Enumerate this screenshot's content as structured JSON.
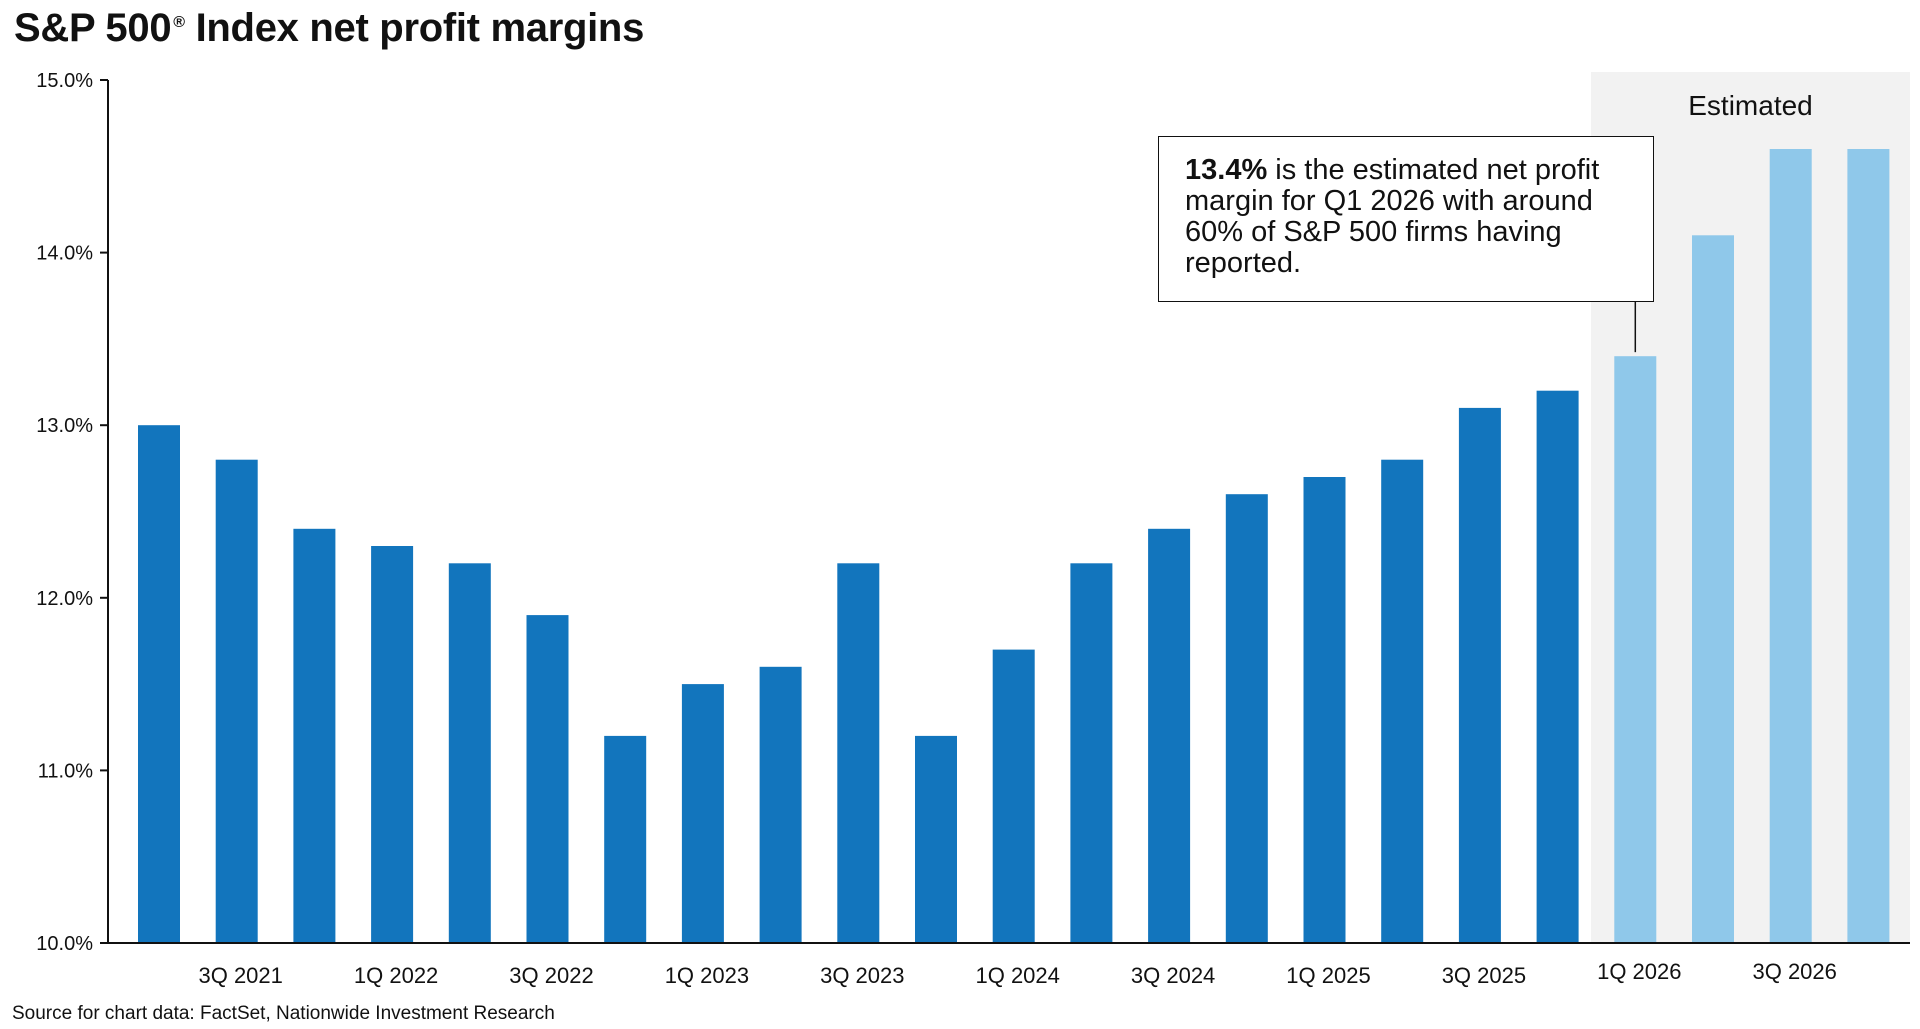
{
  "title": "S&P 500",
  "title_mark": "®",
  "title_rest": "Index net profit margins",
  "source": "Source for chart data: FactSet, Nationwide Investment Research",
  "callout": {
    "highlight": "13.4%",
    "text": "is the estimated net profit margin for Q1 2026 with around 60% of S&P 500 firms having reported."
  },
  "colors": {
    "actual": "#1275bd",
    "estimated": "#8fc8ea",
    "estimated_band": "#f2f2f2",
    "axis": "#111111"
  },
  "chart_data": {
    "type": "bar",
    "categories": [
      "2Q 2021",
      "3Q 2021",
      "4Q 2021",
      "1Q 2022",
      "2Q 2022",
      "3Q 2022",
      "4Q 2022",
      "1Q 2023",
      "2Q 2023",
      "3Q 2023",
      "4Q 2023",
      "1Q 2024",
      "2Q 2024",
      "3Q 2024",
      "4Q 2024",
      "1Q 2025",
      "2Q 2025",
      "3Q 2025",
      "4Q 2025",
      "1Q 2026",
      "2Q 2026",
      "3Q 2026",
      "4Q 2026"
    ],
    "tick_labels": [
      "",
      "3Q 2021",
      "",
      "1Q 2022",
      "",
      "3Q 2022",
      "",
      "1Q 2023",
      "",
      "3Q 2023",
      "",
      "1Q 2024",
      "",
      "3Q 2024",
      "",
      "1Q 2025",
      "",
      "3Q 2025",
      "",
      "1Q 2026",
      "",
      "3Q 2026",
      ""
    ],
    "values": [
      13.0,
      12.8,
      12.4,
      12.3,
      12.2,
      11.9,
      11.2,
      11.5,
      11.6,
      12.2,
      11.2,
      11.7,
      12.2,
      12.4,
      12.6,
      12.7,
      12.8,
      13.1,
      13.2,
      13.4,
      14.1,
      14.6,
      14.6
    ],
    "estimated_from_index": 19,
    "estimated_label": "Estimated",
    "yticks": [
      "10.0%",
      "11.0%",
      "12.0%",
      "13.0%",
      "14.0%",
      "15.0%"
    ],
    "ylim": [
      10,
      15
    ],
    "grid": false
  }
}
